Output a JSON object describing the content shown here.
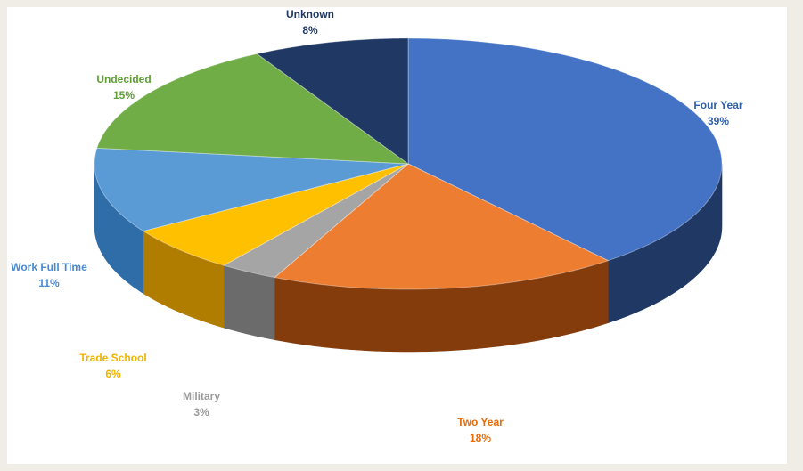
{
  "chart_data": {
    "type": "pie",
    "title": "",
    "legend": "none",
    "slices": [
      {
        "label": "Four Year",
        "value": 39,
        "value_label": "39%",
        "color": "#4472c4",
        "side": "#1f3864",
        "text": "#2e5fa8"
      },
      {
        "label": "Two Year",
        "value": 18,
        "value_label": "18%",
        "color": "#ed7d31",
        "side": "#843c0c",
        "text": "#e46c0a"
      },
      {
        "label": "Military",
        "value": 3,
        "value_label": "3%",
        "color": "#a5a5a5",
        "side": "#6b6b6b",
        "text": "#9c9c9c"
      },
      {
        "label": "Trade School",
        "value": 6,
        "value_label": "6%",
        "color": "#ffc000",
        "side": "#b07d00",
        "text": "#f0b400"
      },
      {
        "label": "Work Full Time",
        "value": 11,
        "value_label": "11%",
        "color": "#5b9bd5",
        "side": "#2e6da8",
        "text": "#4a8ad0"
      },
      {
        "label": "Undecided",
        "value": 15,
        "value_label": "15%",
        "color": "#70ad47",
        "side": "#3f6e25",
        "text": "#5e9e35"
      },
      {
        "label": "Unknown",
        "value": 8,
        "value_label": "8%",
        "color": "#203864",
        "side": "#111d33",
        "text": "#1f3864"
      }
    ]
  }
}
